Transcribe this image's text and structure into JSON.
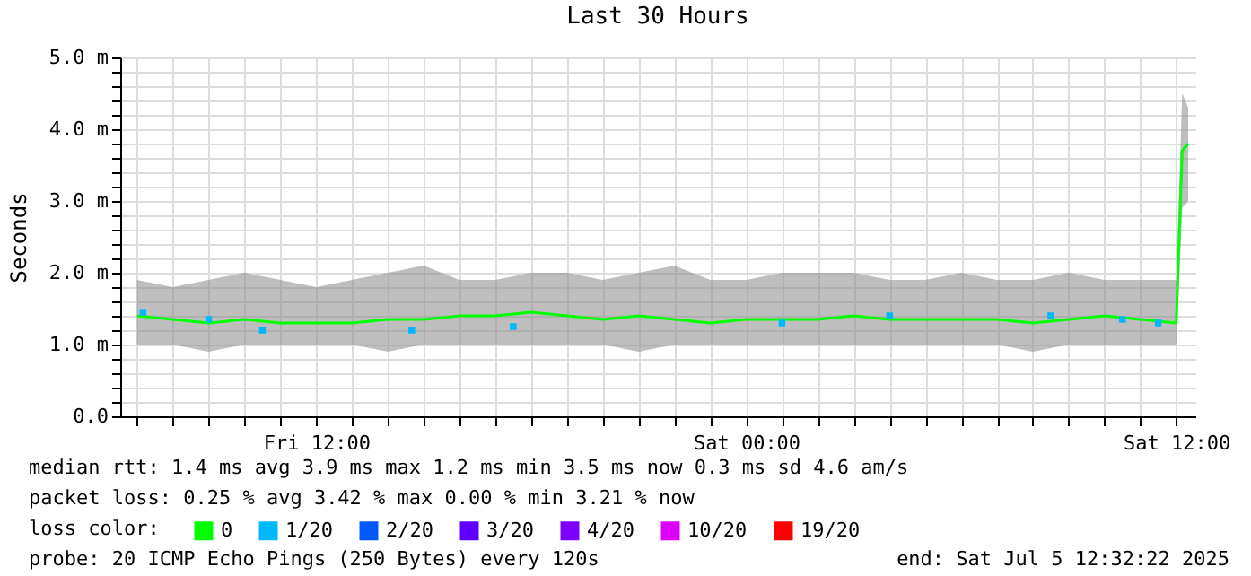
{
  "chart_data": {
    "type": "line",
    "title": "Last 30 Hours",
    "ylabel": "Seconds",
    "x": [
      "2025-07-04T07:00",
      "2025-07-04T08:00",
      "2025-07-04T09:00",
      "2025-07-04T10:00",
      "2025-07-04T11:00",
      "2025-07-04T12:00",
      "2025-07-04T13:00",
      "2025-07-04T14:00",
      "2025-07-04T15:00",
      "2025-07-04T16:00",
      "2025-07-04T17:00",
      "2025-07-04T18:00",
      "2025-07-04T19:00",
      "2025-07-04T20:00",
      "2025-07-04T21:00",
      "2025-07-04T22:00",
      "2025-07-04T23:00",
      "2025-07-05T00:00",
      "2025-07-05T01:00",
      "2025-07-05T02:00",
      "2025-07-05T03:00",
      "2025-07-05T04:00",
      "2025-07-05T05:00",
      "2025-07-05T06:00",
      "2025-07-05T07:00",
      "2025-07-05T08:00",
      "2025-07-05T09:00",
      "2025-07-05T10:00",
      "2025-07-05T11:00",
      "2025-07-05T12:00",
      "2025-07-05T12:10",
      "2025-07-05T12:20"
    ],
    "series": [
      {
        "name": "0",
        "color": "#00ff00",
        "values": [
          1.4,
          1.35,
          1.3,
          1.35,
          1.3,
          1.3,
          1.3,
          1.35,
          1.35,
          1.4,
          1.4,
          1.45,
          1.4,
          1.35,
          1.4,
          1.35,
          1.3,
          1.35,
          1.35,
          1.35,
          1.4,
          1.35,
          1.35,
          1.35,
          1.35,
          1.3,
          1.35,
          1.4,
          1.35,
          1.3,
          3.7,
          3.8
        ],
        "lower": [
          1.0,
          1.0,
          0.9,
          1.0,
          1.0,
          1.0,
          1.0,
          0.9,
          1.0,
          1.0,
          1.0,
          1.0,
          1.0,
          1.0,
          0.9,
          1.0,
          1.0,
          1.0,
          1.0,
          1.0,
          1.0,
          1.0,
          1.0,
          1.0,
          1.0,
          0.9,
          1.0,
          1.0,
          1.0,
          1.0,
          2.9,
          3.0
        ],
        "upper": [
          1.9,
          1.8,
          1.9,
          2.0,
          1.9,
          1.8,
          1.9,
          2.0,
          2.1,
          1.9,
          1.9,
          2.0,
          2.0,
          1.9,
          2.0,
          2.1,
          1.9,
          1.9,
          2.0,
          2.0,
          2.0,
          1.9,
          1.9,
          2.0,
          1.9,
          1.9,
          2.0,
          1.9,
          1.9,
          1.9,
          4.5,
          4.3
        ]
      },
      {
        "name": "1/20",
        "color": "#00b8ff",
        "type": "scatter",
        "x": [
          "2025-07-04T07:10",
          "2025-07-04T09:00",
          "2025-07-04T10:30",
          "2025-07-04T14:40",
          "2025-07-04T17:30",
          "2025-07-05T01:00",
          "2025-07-05T04:00",
          "2025-07-05T08:30",
          "2025-07-05T10:30",
          "2025-07-05T11:30"
        ],
        "values": [
          1.45,
          1.35,
          1.2,
          1.2,
          1.25,
          1.3,
          1.4,
          1.4,
          1.35,
          1.3
        ]
      },
      {
        "name": "2/20",
        "color": "#0059ff",
        "type": "scatter",
        "values": [
          null,
          null,
          null,
          null,
          null,
          null,
          null,
          null,
          null,
          null,
          null,
          null,
          null,
          null,
          null,
          null,
          null,
          null,
          null,
          null,
          null,
          null,
          null,
          null,
          null,
          null,
          null,
          null,
          null,
          null,
          null,
          null
        ]
      },
      {
        "name": "3/20",
        "color": "#5e00ff",
        "type": "scatter",
        "values": [
          null,
          null,
          null,
          null,
          null,
          null,
          null,
          null,
          null,
          null,
          null,
          null,
          null,
          null,
          null,
          null,
          null,
          null,
          null,
          null,
          null,
          null,
          null,
          null,
          null,
          null,
          null,
          null,
          null,
          null,
          null,
          null
        ]
      },
      {
        "name": "4/20",
        "color": "#7e00ff",
        "type": "scatter",
        "values": [
          null,
          null,
          null,
          null,
          null,
          null,
          null,
          null,
          null,
          null,
          null,
          null,
          null,
          null,
          null,
          null,
          null,
          null,
          null,
          null,
          null,
          null,
          null,
          null,
          null,
          null,
          null,
          null,
          null,
          null,
          null,
          null
        ]
      },
      {
        "name": "10/20",
        "color": "#dd00ff",
        "type": "scatter",
        "values": [
          null,
          null,
          null,
          null,
          null,
          null,
          null,
          null,
          null,
          null,
          null,
          null,
          null,
          null,
          null,
          null,
          null,
          null,
          null,
          null,
          null,
          null,
          null,
          null,
          null,
          null,
          null,
          null,
          null,
          null,
          null,
          null
        ]
      },
      {
        "name": "19/20",
        "color": "#ff0000",
        "type": "scatter",
        "values": [
          null,
          null,
          null,
          null,
          null,
          null,
          null,
          null,
          null,
          null,
          null,
          null,
          null,
          null,
          null,
          null,
          null,
          null,
          null,
          null,
          null,
          null,
          null,
          null,
          null,
          null,
          null,
          null,
          null,
          null,
          null,
          null
        ]
      }
    ],
    "xlim": [
      "2025-07-04T06:32",
      "2025-07-05T12:32"
    ],
    "xticks": [
      {
        "value": "2025-07-04T07:00",
        "label": null
      },
      {
        "value": "2025-07-04T08:00",
        "label": null
      },
      {
        "value": "2025-07-04T09:00",
        "label": null
      },
      {
        "value": "2025-07-04T10:00",
        "label": null
      },
      {
        "value": "2025-07-04T11:00",
        "label": null
      },
      {
        "value": "2025-07-04T12:00",
        "label": "Fri 12:00"
      },
      {
        "value": "2025-07-04T13:00",
        "label": null
      },
      {
        "value": "2025-07-04T14:00",
        "label": null
      },
      {
        "value": "2025-07-04T15:00",
        "label": null
      },
      {
        "value": "2025-07-04T16:00",
        "label": null
      },
      {
        "value": "2025-07-04T17:00",
        "label": null
      },
      {
        "value": "2025-07-04T18:00",
        "label": null
      },
      {
        "value": "2025-07-04T19:00",
        "label": null
      },
      {
        "value": "2025-07-04T20:00",
        "label": null
      },
      {
        "value": "2025-07-04T21:00",
        "label": null
      },
      {
        "value": "2025-07-04T22:00",
        "label": null
      },
      {
        "value": "2025-07-04T23:00",
        "label": null
      },
      {
        "value": "2025-07-05T00:00",
        "label": "Sat 00:00"
      },
      {
        "value": "2025-07-05T01:00",
        "label": null
      },
      {
        "value": "2025-07-05T02:00",
        "label": null
      },
      {
        "value": "2025-07-05T03:00",
        "label": null
      },
      {
        "value": "2025-07-05T04:00",
        "label": null
      },
      {
        "value": "2025-07-05T05:00",
        "label": null
      },
      {
        "value": "2025-07-05T06:00",
        "label": null
      },
      {
        "value": "2025-07-05T07:00",
        "label": null
      },
      {
        "value": "2025-07-05T08:00",
        "label": null
      },
      {
        "value": "2025-07-05T09:00",
        "label": null
      },
      {
        "value": "2025-07-05T10:00",
        "label": null
      },
      {
        "value": "2025-07-05T11:00",
        "label": null
      },
      {
        "value": "2025-07-05T12:00",
        "label": "Sat 12:00"
      }
    ],
    "ylim": [
      0,
      5
    ],
    "yticks": [
      {
        "value": 0,
        "label": "0.0"
      },
      {
        "value": 0.2,
        "label": null
      },
      {
        "value": 0.4,
        "label": null
      },
      {
        "value": 0.6,
        "label": null
      },
      {
        "value": 0.8,
        "label": null
      },
      {
        "value": 1,
        "label": "1.0 m"
      },
      {
        "value": 1.2,
        "label": null
      },
      {
        "value": 1.4,
        "label": null
      },
      {
        "value": 1.6,
        "label": null
      },
      {
        "value": 1.8,
        "label": null
      },
      {
        "value": 2,
        "label": "2.0 m"
      },
      {
        "value": 2.2,
        "label": null
      },
      {
        "value": 2.4,
        "label": null
      },
      {
        "value": 2.6,
        "label": null
      },
      {
        "value": 2.8,
        "label": null
      },
      {
        "value": 3,
        "label": "3.0 m"
      },
      {
        "value": 3.2,
        "label": null
      },
      {
        "value": 3.4,
        "label": null
      },
      {
        "value": 3.6,
        "label": null
      },
      {
        "value": 3.8,
        "label": null
      },
      {
        "value": 4,
        "label": "4.0 m"
      },
      {
        "value": 4.2,
        "label": null
      },
      {
        "value": 4.4,
        "label": null
      },
      {
        "value": 4.6,
        "label": null
      },
      {
        "value": 4.8,
        "label": null
      },
      {
        "value": 5,
        "label": "5.0 m"
      }
    ],
    "grid": true,
    "legend": "bottom left",
    "annotations": [
      "median rtt:  1.4 ms avg  3.9 ms max  1.2 ms min  3.5 ms now  0.3 ms sd  4.6   am/s",
      "packet loss: 0.25 % avg  3.42 % max  0.00 % min  3.21 % now",
      "loss color:",
      "probe:       20 ICMP Echo Pings (250 Bytes) every 120s",
      "end: Sat Jul  5 12:32:22 2025"
    ]
  }
}
